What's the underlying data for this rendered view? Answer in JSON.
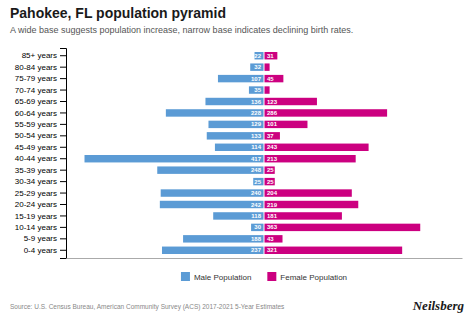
{
  "chart_data": {
    "type": "bar",
    "orientation": "horizontal",
    "title": "Pahokee, FL population pyramid",
    "subtitle": "A wide base suggests population increase, narrow base indicates declining birth rates.",
    "annotations": [
      "Source: U.S. Census Bureau, American Community Survey (ACS) 2017-2021 5-Year Estimates",
      "Neilsberg"
    ],
    "categories": [
      "85+ years",
      "80-84 years",
      "75-79 years",
      "70-74 years",
      "65-69 years",
      "60-64 years",
      "55-59 years",
      "50-54 years",
      "45-49 years",
      "40-44 years",
      "35-39 years",
      "30-34 years",
      "25-29 years",
      "20-24 years",
      "15-19 years",
      "10-14 years",
      "5-9 years",
      "0-4 years"
    ],
    "series": [
      {
        "name": "Male Population",
        "color": "#5b9bd5",
        "values": [
          22,
          32,
          107,
          35,
          136,
          228,
          129,
          133,
          114,
          417,
          248,
          25,
          240,
          242,
          118,
          30,
          188,
          237
        ],
        "value_labels": [
          "22",
          "32",
          "107",
          "35",
          "136",
          "228",
          "129",
          "133",
          "114",
          "417",
          "248",
          "25",
          "240",
          "242",
          "118",
          "30",
          "188",
          "237"
        ]
      },
      {
        "name": "Female Population",
        "color": "#cc0080",
        "values": [
          31,
          13,
          45,
          13,
          123,
          286,
          101,
          37,
          243,
          213,
          25,
          25,
          204,
          219,
          181,
          363,
          43,
          321
        ],
        "value_labels": [
          "31",
          null,
          "45",
          null,
          "123",
          "286",
          "101",
          "37",
          "243",
          "213",
          "25",
          "25",
          "204",
          "219",
          "181",
          "363",
          "43",
          "321"
        ]
      }
    ],
    "xlim": [
      -460,
      460
    ],
    "data_labels": true,
    "tick_labels": "y",
    "legend": "bottom",
    "grid": false
  }
}
